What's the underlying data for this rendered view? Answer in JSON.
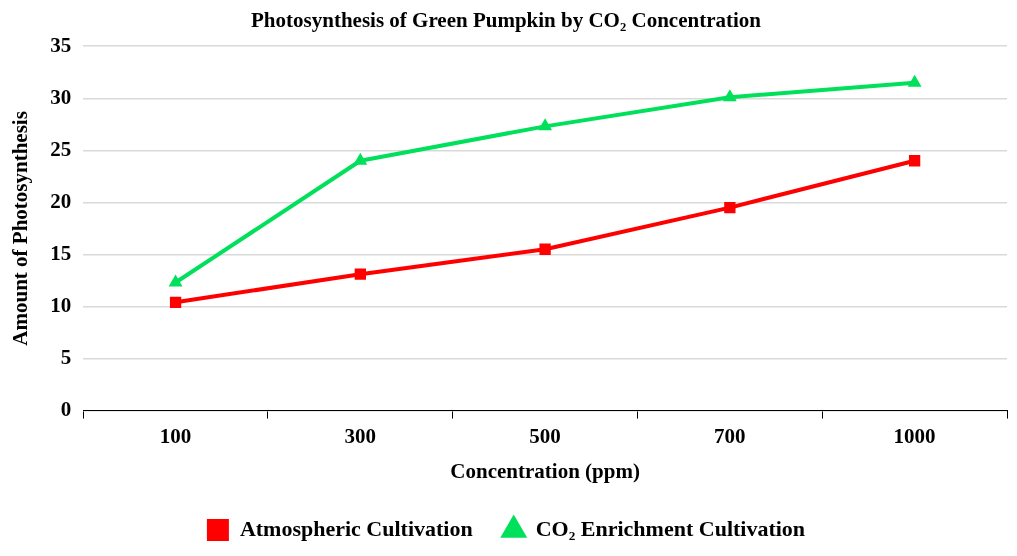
{
  "chart_data": {
    "type": "line",
    "title": "Photosynthesis of Green Pumpkin by CO₂ Concentration",
    "xlabel": "Concentration (ppm)",
    "ylabel": "Amount of Photosynthesis",
    "categories": [
      "100",
      "300",
      "500",
      "700",
      "1000"
    ],
    "series": [
      {
        "name": "Atmospheric Cultivation",
        "color": "#ff0000",
        "marker": "square",
        "values": [
          10.4,
          13.1,
          15.5,
          19.5,
          24.0
        ]
      },
      {
        "name": "CO₂ Enrichment Cultivation",
        "color": "#00e05a",
        "marker": "triangle",
        "values": [
          12.3,
          24.0,
          27.3,
          30.1,
          31.5
        ]
      }
    ],
    "ylim": [
      0,
      35
    ],
    "yticks": [
      0,
      5,
      10,
      15,
      20,
      25,
      30,
      35
    ],
    "grid": "y",
    "legend": "bottom",
    "line_style": "solid"
  }
}
